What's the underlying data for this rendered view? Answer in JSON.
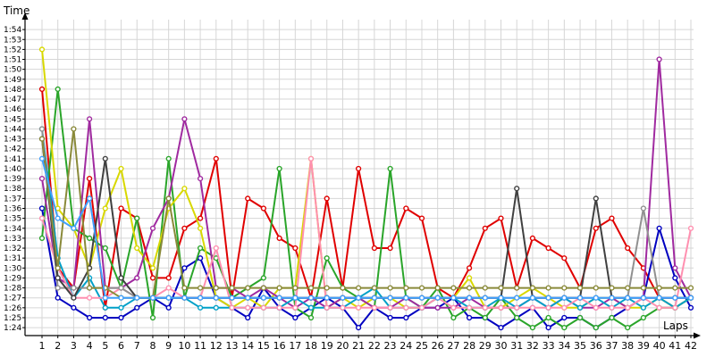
{
  "chart_data": {
    "type": "line",
    "ylabel": "Time",
    "xlabel": "Laps",
    "x": [
      1,
      2,
      3,
      4,
      5,
      6,
      7,
      8,
      9,
      10,
      11,
      12,
      13,
      14,
      15,
      16,
      17,
      18,
      19,
      20,
      21,
      22,
      23,
      24,
      25,
      26,
      27,
      28,
      29,
      30,
      31,
      32,
      33,
      34,
      35,
      36,
      37,
      38,
      39,
      40,
      41,
      42
    ],
    "y_ticks": [
      "1:24",
      "1:25",
      "1:26",
      "1:27",
      "1:28",
      "1:29",
      "1:30",
      "1:31",
      "1:32",
      "1:33",
      "1:34",
      "1:35",
      "1:36",
      "1:37",
      "1:38",
      "1:39",
      "1:40",
      "1:41",
      "1:42",
      "1:43",
      "1:44",
      "1:45",
      "1:46",
      "1:47",
      "1:48",
      "1:49",
      "1:50",
      "1:51",
      "1:52",
      "1:53",
      "1:54"
    ],
    "ylim_seconds": [
      83.2,
      115.0
    ],
    "ylim": [
      "1:23.2",
      "1:55.0"
    ],
    "grid": true,
    "legend": "none",
    "series": [
      {
        "color": "#e00000",
        "values": [
          108,
          90,
          88,
          99,
          86,
          96,
          95,
          89,
          89,
          94,
          95,
          101,
          87,
          97,
          96,
          93,
          92,
          87,
          97,
          88,
          100,
          92,
          92,
          96,
          95,
          88,
          87,
          90,
          94,
          95,
          88,
          93,
          92,
          91,
          88,
          94,
          95,
          92,
          90,
          87,
          86,
          87
        ]
      },
      {
        "color": "#0000c0",
        "values": [
          96,
          87,
          86,
          85,
          85,
          85,
          86,
          87,
          86,
          90,
          91,
          87,
          86,
          85,
          88,
          86,
          85,
          86,
          87,
          86,
          84,
          86,
          85,
          85,
          86,
          86,
          87,
          85,
          85,
          84,
          85,
          86,
          84,
          85,
          85,
          84,
          85,
          86,
          87,
          94,
          89,
          86
        ]
      },
      {
        "color": "#2aa52a",
        "values": [
          93,
          108,
          94,
          93,
          92,
          88,
          95,
          85,
          101,
          87,
          92,
          91,
          87,
          88,
          89,
          100,
          86,
          85,
          91,
          88,
          87,
          86,
          100,
          87,
          86,
          88,
          85,
          86,
          85,
          87,
          85,
          84,
          85,
          84,
          85,
          84,
          85,
          84,
          85,
          86,
          86,
          87
        ]
      },
      {
        "color": "#d8d800",
        "values": [
          112,
          96,
          94,
          90,
          96,
          100,
          92,
          90,
          96,
          98,
          94,
          87,
          86,
          87,
          86,
          88,
          88,
          101,
          86,
          87,
          86,
          87,
          87,
          86,
          86,
          87,
          87,
          89,
          86,
          86,
          87,
          88,
          87,
          86,
          86,
          87,
          87,
          86,
          86,
          87,
          86,
          87
        ]
      },
      {
        "color": "#a02aa0",
        "values": [
          99,
          89,
          88,
          105,
          88,
          88,
          89,
          94,
          97,
          105,
          99,
          88,
          88,
          87,
          88,
          87,
          86,
          87,
          86,
          87,
          87,
          86,
          86,
          87,
          86,
          86,
          86,
          87,
          86,
          86,
          86,
          87,
          86,
          87,
          86,
          86,
          87,
          86,
          87,
          111,
          90,
          87
        ]
      },
      {
        "color": "#00a0c8",
        "values": [
          104,
          91,
          87,
          89,
          86,
          86,
          87,
          87,
          87,
          87,
          86,
          86,
          86,
          86,
          86,
          86,
          87,
          86,
          86,
          86,
          87,
          88,
          86,
          86,
          86,
          87,
          87,
          86,
          86,
          87,
          86,
          87,
          86,
          87,
          86,
          87,
          86,
          87,
          86,
          87,
          86,
          87
        ]
      },
      {
        "color": "#ff90b0",
        "values": [
          95,
          90,
          87,
          87,
          87,
          88,
          87,
          87,
          88,
          87,
          87,
          92,
          86,
          86,
          86,
          86,
          86,
          101,
          86,
          86,
          86,
          86,
          86,
          86,
          86,
          87,
          86,
          86,
          86,
          86,
          86,
          86,
          86,
          86,
          87,
          86,
          86,
          86,
          87,
          86,
          86,
          94
        ]
      },
      {
        "color": "#909090",
        "values": [
          104,
          88,
          88,
          88,
          88,
          88,
          87,
          87,
          87,
          87,
          87,
          87,
          87,
          87,
          87,
          87,
          87,
          87,
          87,
          87,
          87,
          87,
          87,
          87,
          87,
          87,
          87,
          87,
          87,
          87,
          87,
          87,
          87,
          87,
          87,
          87,
          87,
          87,
          96,
          87,
          87,
          87
        ]
      },
      {
        "color": "#404040",
        "values": [
          103,
          89,
          87,
          90,
          101,
          89,
          87,
          87,
          87,
          87,
          87,
          87,
          87,
          87,
          87,
          87,
          87,
          87,
          87,
          87,
          87,
          87,
          87,
          87,
          87,
          87,
          87,
          87,
          87,
          87,
          98,
          87,
          87,
          87,
          87,
          97,
          87,
          87,
          87,
          87,
          87,
          87
        ]
      },
      {
        "color": "#8a8a3a",
        "values": [
          103,
          90,
          104,
          88,
          88,
          87,
          87,
          87,
          97,
          88,
          88,
          88,
          88,
          88,
          88,
          88,
          88,
          88,
          88,
          88,
          88,
          88,
          88,
          88,
          88,
          88,
          88,
          88,
          88,
          88,
          88,
          88,
          88,
          88,
          88,
          88,
          88,
          88,
          88,
          88,
          88,
          88
        ]
      },
      {
        "color": "#3f9fff",
        "values": [
          101,
          95,
          94,
          97,
          87,
          87,
          87,
          87,
          87,
          87,
          87,
          87,
          87,
          87,
          87,
          87,
          87,
          87,
          87,
          87,
          87,
          87,
          87,
          87,
          87,
          87,
          87,
          87,
          87,
          87,
          87,
          87,
          87,
          87,
          87,
          87,
          87,
          87,
          87,
          87,
          87,
          87
        ]
      }
    ]
  }
}
